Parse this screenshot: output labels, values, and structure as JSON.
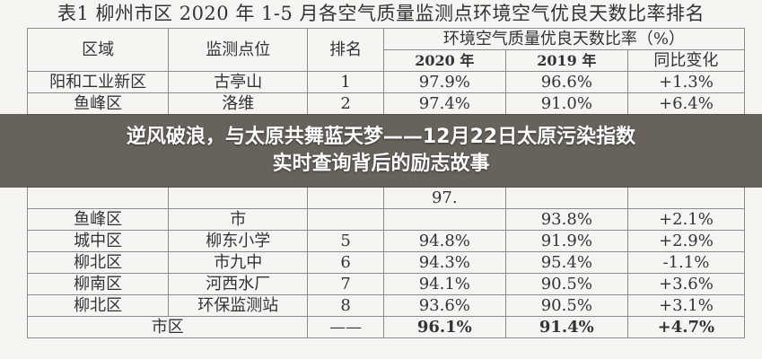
{
  "table": {
    "title": "表1 柳州市区 2020 年 1-5 月各空气质量监测点环境空气优良天数比率排名",
    "headers": {
      "region": "区域",
      "site": "监测点位",
      "rank": "排名",
      "group": "环境空气质量优良天数比率（%）",
      "y2020": "2020 年",
      "y2019": "2019 年",
      "change": "同比变化"
    },
    "rows": [
      [
        "阳和工业新区",
        "古亭山",
        "1",
        "97.9%",
        "96.6%",
        "+1.3%"
      ],
      [
        "鱼峰区",
        "洛维",
        "2",
        "97.4%",
        "91.0%",
        "+6.4%"
      ],
      [
        "",
        "",
        "",
        "97.",
        "",
        ""
      ],
      [
        "鱼峰区",
        "市",
        "",
        "",
        "93.8%",
        "+2.1%"
      ],
      [
        "城中区",
        "柳东小学",
        "5",
        "94.8%",
        "91.9%",
        "+2.9%"
      ],
      [
        "柳北区",
        "市九中",
        "6",
        "94.3%",
        "95.4%",
        "-1.1%"
      ],
      [
        "柳南区",
        "河西水厂",
        "7",
        "94.1%",
        "90.5%",
        "+3.6%"
      ],
      [
        "柳北区",
        "环保监测站",
        "8",
        "93.6%",
        "90.5%",
        "+3.1%"
      ]
    ],
    "total": {
      "region": "市区",
      "rank": "——",
      "y2020": "96.1%",
      "y2019": "91.4%",
      "change": "+4.7%"
    }
  },
  "banner": {
    "line1": "逆风破浪，与太原共舞蓝天梦——12月22日太原污染指数",
    "line2": "实时查询背后的励志故事"
  }
}
